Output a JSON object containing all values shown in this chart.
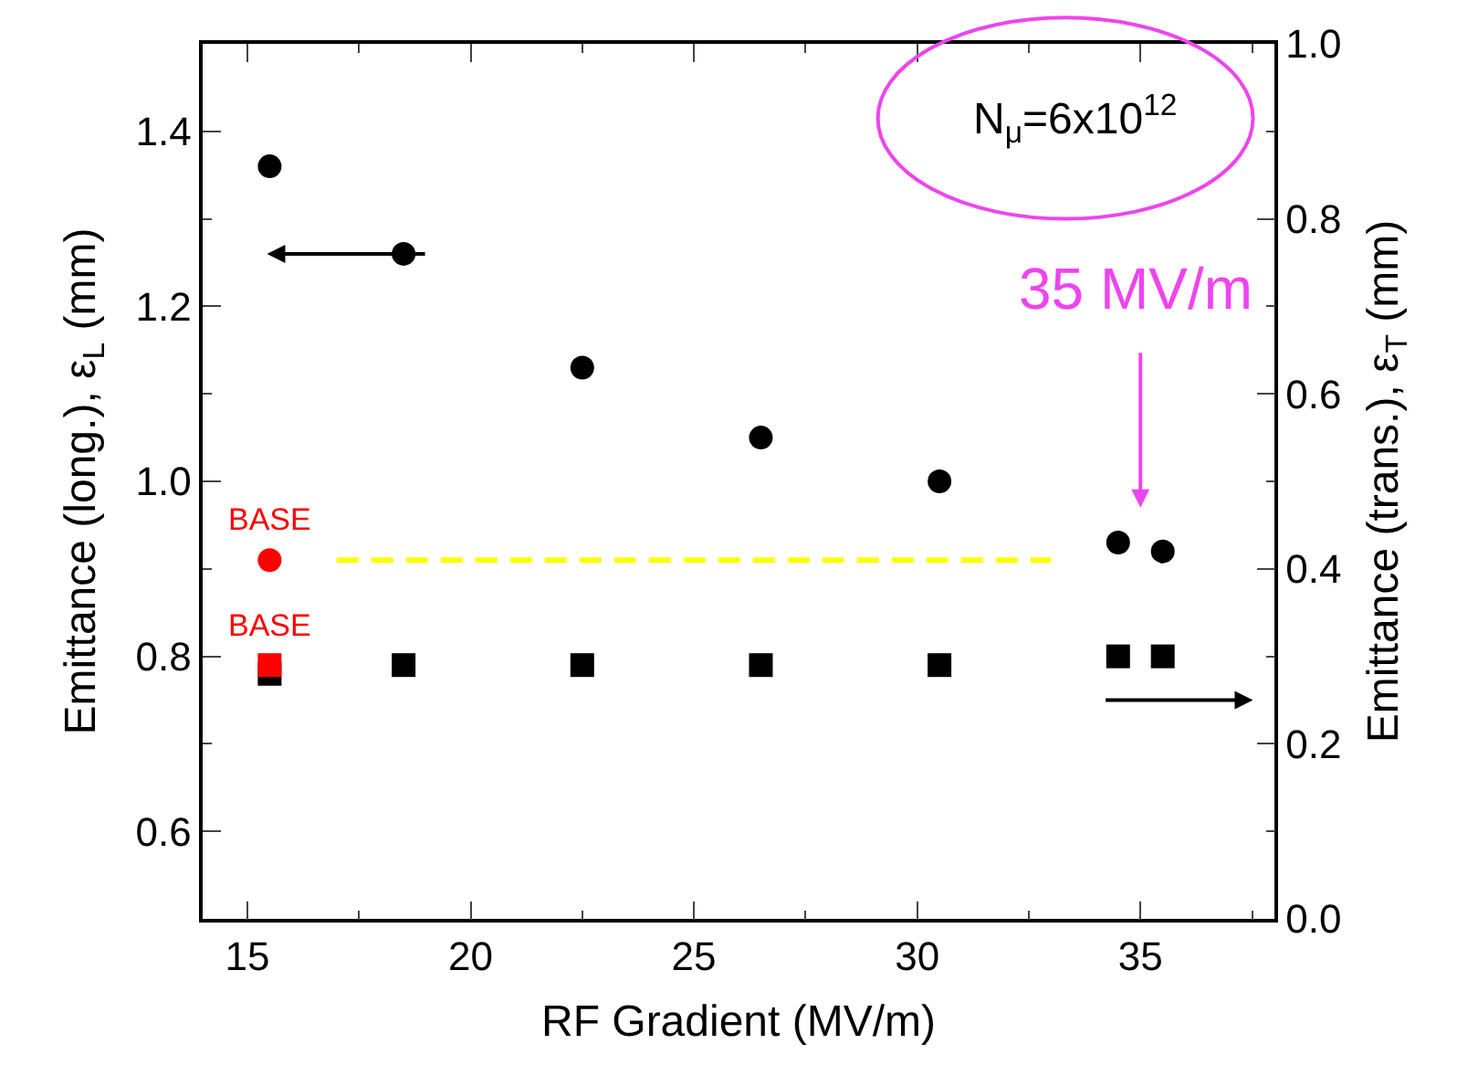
{
  "chart_data": {
    "type": "scatter",
    "xlabel": "RF Gradient (MV/m)",
    "ylabel": "Emittance (long.), ε$_{L}$ (mm)",
    "y2label": "Emittance (trans.), ε$_{T}$ (mm)",
    "xlim": [
      14,
      38
    ],
    "xticks": [
      15,
      20,
      25,
      30,
      35
    ],
    "ylim": [
      0.5,
      1.5
    ],
    "yticks": [
      0.6,
      0.8,
      {
        "value": 1.0,
        "label": "1.0"
      },
      1.2,
      1.4
    ],
    "y2lim": [
      0,
      1.0
    ],
    "y2ticks": [
      {
        "value": 0,
        "label": "0.0"
      },
      0.2,
      0.4,
      0.6,
      0.8,
      {
        "value": 1.0,
        "label": "1.0"
      }
    ],
    "legend": false,
    "series": [
      {
        "marker": "circle",
        "color": "#000000",
        "x": [
          15.5,
          18.5,
          22.5,
          26.5,
          30.5,
          34.5,
          35.5
        ],
        "values": [
          1.36,
          1.26,
          1.13,
          1.05,
          1.0,
          0.93,
          0.92
        ]
      },
      {
        "marker": "square",
        "color": "#000000",
        "axis": "y2",
        "x": [
          15.5,
          18.5,
          22.5,
          26.5,
          30.5,
          34.5,
          35.5
        ],
        "values": [
          0.28,
          0.29,
          0.29,
          0.29,
          0.29,
          0.3,
          0.3
        ]
      },
      {
        "marker": "circle",
        "color": "#ff0000",
        "x": [
          15.5
        ],
        "values": [
          0.91
        ]
      },
      {
        "marker": "square",
        "color": "#ff0000",
        "axis": "y2",
        "x": [
          15.5
        ],
        "values": [
          0.29
        ]
      },
      {
        "type": "line",
        "marker": "none",
        "line_style": "dashed",
        "color": "#ffff00",
        "x": [
          17,
          33
        ],
        "values": [
          0.91,
          0.91
        ]
      }
    ],
    "annotations": [
      {
        "text": "BASE",
        "x": 15.5,
        "y": 0.91
      },
      {
        "text": "BASE",
        "x": 15.5,
        "y": 0.79
      },
      "35 MV/m",
      "N$_{μ}$=6x10$^{12}$"
    ]
  }
}
